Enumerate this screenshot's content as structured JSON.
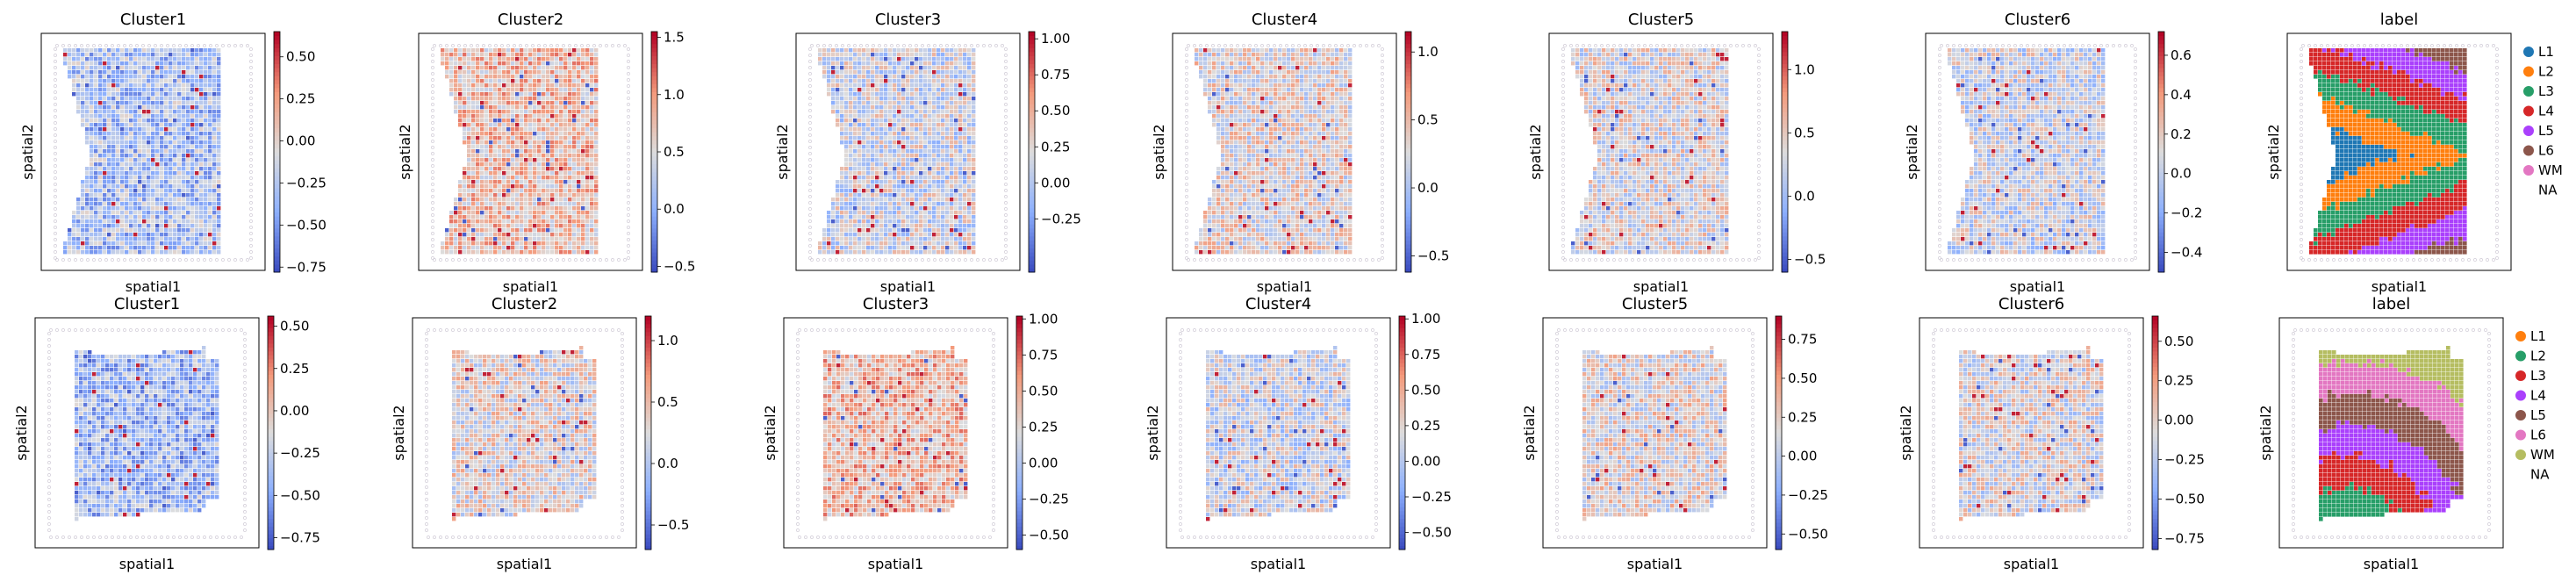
{
  "figure": {
    "rows": [
      {
        "panels": [
          {
            "kind": "continuous",
            "title": "Cluster1",
            "xlabel": "spatial1",
            "ylabel": "spatial2",
            "cbar": {
              "min": -0.78,
              "max": 0.65,
              "ticks": [
                -0.75,
                -0.5,
                -0.25,
                0.0,
                0.25,
                0.5
              ],
              "tick_labels": [
                "−0.75",
                "−0.50",
                "−0.25",
                "0.00",
                "0.25",
                "0.50"
              ]
            },
            "bias": -0.35,
            "shape": "top1"
          },
          {
            "kind": "continuous",
            "title": "Cluster2",
            "xlabel": "spatial1",
            "ylabel": "spatial2",
            "cbar": {
              "min": -0.55,
              "max": 1.55,
              "ticks": [
                -0.5,
                0.0,
                0.5,
                1.0,
                1.5
              ],
              "tick_labels": [
                "−0.5",
                "0.0",
                "0.5",
                "1.0",
                "1.5"
              ]
            },
            "bias": 0.25,
            "shape": "top2"
          },
          {
            "kind": "continuous",
            "title": "Cluster3",
            "xlabel": "spatial1",
            "ylabel": "spatial2",
            "cbar": {
              "min": -0.62,
              "max": 1.05,
              "ticks": [
                -0.25,
                0.0,
                0.25,
                0.5,
                0.75,
                1.0
              ],
              "tick_labels": [
                "−0.25",
                "0.00",
                "0.25",
                "0.50",
                "0.75",
                "1.00"
              ]
            },
            "bias": -0.1,
            "shape": "top1"
          },
          {
            "kind": "continuous",
            "title": "Cluster4",
            "xlabel": "spatial1",
            "ylabel": "spatial2",
            "cbar": {
              "min": -0.62,
              "max": 1.15,
              "ticks": [
                -0.5,
                0.0,
                0.5,
                1.0
              ],
              "tick_labels": [
                "−0.5",
                "0.0",
                "0.5",
                "1.0"
              ]
            },
            "bias": 0.05,
            "shape": "top1"
          },
          {
            "kind": "continuous",
            "title": "Cluster5",
            "xlabel": "spatial1",
            "ylabel": "spatial2",
            "cbar": {
              "min": -0.6,
              "max": 1.3,
              "ticks": [
                -0.5,
                0.0,
                0.5,
                1.0
              ],
              "tick_labels": [
                "−0.5",
                "0.0",
                "0.5",
                "1.0"
              ]
            },
            "bias": 0.0,
            "shape": "top1"
          },
          {
            "kind": "continuous",
            "title": "Cluster6",
            "xlabel": "spatial1",
            "ylabel": "spatial2",
            "cbar": {
              "min": -0.5,
              "max": 0.72,
              "ticks": [
                -0.4,
                -0.2,
                0.0,
                0.2,
                0.4,
                0.6
              ],
              "tick_labels": [
                "−0.4",
                "−0.2",
                "0.0",
                "0.2",
                "0.4",
                "0.6"
              ]
            },
            "bias": -0.1,
            "shape": "top1"
          },
          {
            "kind": "categorical",
            "title": "label",
            "xlabel": "spatial1",
            "ylabel": "spatial2",
            "legend": [
              {
                "label": "L1",
                "color": "#1f77b4"
              },
              {
                "label": "L2",
                "color": "#ff7f0e"
              },
              {
                "label": "L3",
                "color": "#279e68"
              },
              {
                "label": "L4",
                "color": "#d62728"
              },
              {
                "label": "L5",
                "color": "#aa40fc"
              },
              {
                "label": "L6",
                "color": "#8c564b"
              },
              {
                "label": "WM",
                "color": "#e377c2"
              },
              {
                "label": "NA",
                "color": null
              }
            ],
            "shape": "top1"
          }
        ]
      },
      {
        "panels": [
          {
            "kind": "continuous",
            "title": "Cluster1",
            "xlabel": "spatial1",
            "ylabel": "spatial2",
            "cbar": {
              "min": -0.82,
              "max": 0.56,
              "ticks": [
                -0.75,
                -0.5,
                -0.25,
                0.0,
                0.25,
                0.5
              ],
              "tick_labels": [
                "−0.75",
                "−0.50",
                "−0.25",
                "0.00",
                "0.25",
                "0.50"
              ]
            },
            "bias": -0.4,
            "shape": "bottom"
          },
          {
            "kind": "continuous",
            "title": "Cluster2",
            "xlabel": "spatial1",
            "ylabel": "spatial2",
            "cbar": {
              "min": -0.7,
              "max": 1.2,
              "ticks": [
                -0.5,
                0.0,
                0.5,
                1.0
              ],
              "tick_labels": [
                "−0.5",
                "0.0",
                "0.5",
                "1.0"
              ]
            },
            "bias": 0.05,
            "shape": "bottom"
          },
          {
            "kind": "continuous",
            "title": "Cluster3",
            "xlabel": "spatial1",
            "ylabel": "spatial2",
            "cbar": {
              "min": -0.6,
              "max": 1.02,
              "ticks": [
                -0.5,
                -0.25,
                0.0,
                0.25,
                0.5,
                0.75,
                1.0
              ],
              "tick_labels": [
                "−0.50",
                "−0.25",
                "0.00",
                "0.25",
                "0.50",
                "0.75",
                "1.00"
              ]
            },
            "bias": 0.3,
            "shape": "bottom"
          },
          {
            "kind": "continuous",
            "title": "Cluster4",
            "xlabel": "spatial1",
            "ylabel": "spatial2",
            "cbar": {
              "min": -0.62,
              "max": 1.02,
              "ticks": [
                -0.5,
                -0.25,
                0.0,
                0.25,
                0.5,
                0.75,
                1.0
              ],
              "tick_labels": [
                "−0.50",
                "−0.25",
                "0.00",
                "0.25",
                "0.50",
                "0.75",
                "1.00"
              ]
            },
            "bias": -0.1,
            "shape": "bottom"
          },
          {
            "kind": "continuous",
            "title": "Cluster5",
            "xlabel": "spatial1",
            "ylabel": "spatial2",
            "cbar": {
              "min": -0.6,
              "max": 0.9,
              "ticks": [
                -0.5,
                -0.25,
                0.0,
                0.25,
                0.5,
                0.75
              ],
              "tick_labels": [
                "−0.50",
                "−0.25",
                "0.00",
                "0.25",
                "0.50",
                "0.75"
              ]
            },
            "bias": 0.05,
            "shape": "bottom"
          },
          {
            "kind": "continuous",
            "title": "Cluster6",
            "xlabel": "spatial1",
            "ylabel": "spatial2",
            "cbar": {
              "min": -0.82,
              "max": 0.66,
              "ticks": [
                -0.75,
                -0.5,
                -0.25,
                0.0,
                0.25,
                0.5
              ],
              "tick_labels": [
                "−0.75",
                "−0.50",
                "−0.25",
                "0.00",
                "0.25",
                "0.50"
              ]
            },
            "bias": 0.0,
            "shape": "bottom"
          },
          {
            "kind": "categorical",
            "title": "label",
            "xlabel": "spatial1",
            "ylabel": "spatial2",
            "legend": [
              {
                "label": "L1",
                "color": "#ff7f0e"
              },
              {
                "label": "L2",
                "color": "#279e68"
              },
              {
                "label": "L3",
                "color": "#d62728"
              },
              {
                "label": "L4",
                "color": "#aa40fc"
              },
              {
                "label": "L5",
                "color": "#8c564b"
              },
              {
                "label": "L6",
                "color": "#e377c2"
              },
              {
                "label": "WM",
                "color": "#b5bd61"
              },
              {
                "label": "NA",
                "color": null
              }
            ],
            "shape": "bottom"
          }
        ]
      }
    ]
  }
}
